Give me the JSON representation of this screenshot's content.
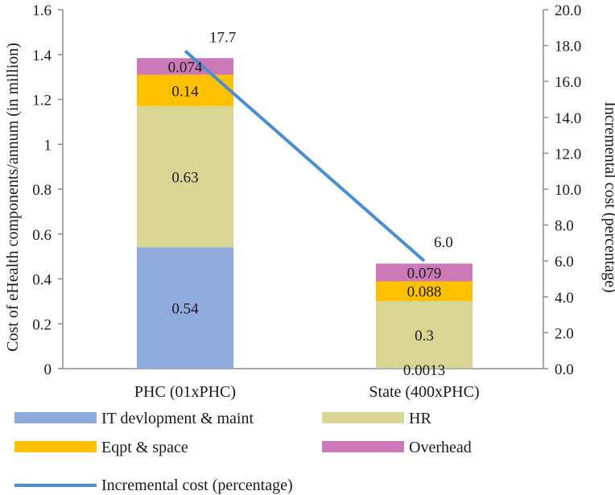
{
  "chart_data": {
    "type": "bar",
    "stacked": true,
    "categories": [
      "PHC (01xPHC)",
      "State (400xPHC)"
    ],
    "series": [
      {
        "name": "IT devlopment & maint",
        "values": [
          0.54,
          0.0013
        ],
        "labels": [
          "0.54",
          "0.0013"
        ],
        "color": "#8faadc"
      },
      {
        "name": "HR",
        "values": [
          0.63,
          0.3
        ],
        "labels": [
          "0.63",
          "0.3"
        ],
        "color": "#d9d593"
      },
      {
        "name": "Eqpt & space",
        "values": [
          0.14,
          0.088
        ],
        "labels": [
          "0.14",
          "0.088"
        ],
        "color": "#ffc000"
      },
      {
        "name": "Overhead",
        "values": [
          0.074,
          0.079
        ],
        "labels": [
          "0.074",
          "0.079"
        ],
        "color": "#cc79b8"
      }
    ],
    "line_series": {
      "name": "Incremental cost (percentage)",
      "values": [
        17.7,
        6.0
      ],
      "labels": [
        "17.7",
        "6.0"
      ],
      "axis": "right",
      "color": "#4a90d0"
    },
    "ylabel": "Cost of eHealth components/annum (in million)",
    "ylabel_right": "Incremental cost (percentage)",
    "ylim": [
      0,
      1.6
    ],
    "yticks": [
      "0",
      "0.2",
      "0.4",
      "0.6",
      "0.8",
      "1",
      "1.2",
      "1.4",
      "1.6"
    ],
    "ylim_right": [
      0,
      20
    ],
    "yticks_right": [
      "0.0",
      "2.0",
      "4.0",
      "6.0",
      "8.0",
      "10.0",
      "12.0",
      "14.0",
      "16.0",
      "18.0",
      "20.0"
    ],
    "grid": false,
    "legend_placement": "bottom"
  }
}
